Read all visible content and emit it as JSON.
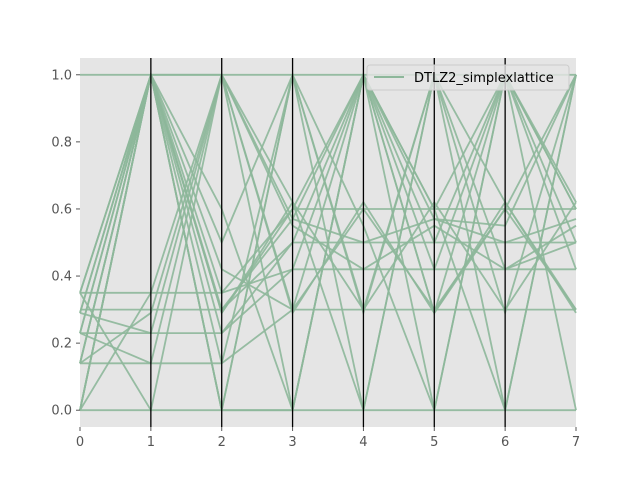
{
  "chart_data": {
    "type": "line",
    "subtype": "parallel-coordinates",
    "title": "",
    "xlabel": "",
    "ylabel": "",
    "xlim": [
      0,
      7
    ],
    "ylim": [
      -0.05,
      1.05
    ],
    "x_ticks": [
      0,
      1,
      2,
      3,
      4,
      5,
      6,
      7
    ],
    "x_tick_labels": [
      "0",
      "1",
      "2",
      "3",
      "4",
      "5",
      "6",
      "7"
    ],
    "y_ticks": [
      0.0,
      0.2,
      0.4,
      0.6,
      0.8,
      1.0
    ],
    "y_tick_labels": [
      "0.0",
      "0.2",
      "0.4",
      "0.6",
      "0.8",
      "1.0"
    ],
    "grid": false,
    "axis_background": "#e5e5e5",
    "vertical_axes_color": "#000000",
    "legend": {
      "position": "top-right",
      "entries": [
        "DTLZ2_simplexlattice"
      ]
    },
    "series": [
      {
        "name": "DTLZ2_simplexlattice",
        "color": "#8db79a",
        "x": [
          0,
          1,
          2,
          3,
          4,
          5,
          6,
          7
        ],
        "lines": [
          [
            1.0,
            1.0,
            1.0,
            1.0,
            1.0,
            1.0,
            1.0,
            1.0
          ],
          [
            0.0,
            1.0,
            1.0,
            0.0,
            1.0,
            0.0,
            1.0,
            0.0
          ],
          [
            0.35,
            0.35,
            0.35,
            0.6,
            0.6,
            0.6,
            0.6,
            0.6
          ],
          [
            0.3,
            0.3,
            0.3,
            0.5,
            0.5,
            0.5,
            0.5,
            0.5
          ],
          [
            0.23,
            0.23,
            0.23,
            0.42,
            0.42,
            0.42,
            0.42,
            0.42
          ],
          [
            0.14,
            0.14,
            0.14,
            0.3,
            0.3,
            0.3,
            0.3,
            0.3
          ],
          [
            0.0,
            0.0,
            0.0,
            0.0,
            0.0,
            0.0,
            0.0,
            0.0
          ],
          [
            0.35,
            1.0,
            0.0,
            1.0,
            0.0,
            1.0,
            0.0,
            1.0
          ],
          [
            0.29,
            1.0,
            0.14,
            1.0,
            0.29,
            1.0,
            0.29,
            1.0
          ],
          [
            0.23,
            1.0,
            0.29,
            0.6,
            1.0,
            0.6,
            1.0,
            0.6
          ],
          [
            0.14,
            1.0,
            0.23,
            0.5,
            1.0,
            0.5,
            1.0,
            0.5
          ],
          [
            0.0,
            1.0,
            0.35,
            0.42,
            1.0,
            0.42,
            1.0,
            0.42
          ],
          [
            0.35,
            0.0,
            1.0,
            0.3,
            0.6,
            0.3,
            0.6,
            0.3
          ],
          [
            0.29,
            0.23,
            1.0,
            0.62,
            0.3,
            0.62,
            0.3,
            0.62
          ],
          [
            0.23,
            0.14,
            1.0,
            0.55,
            0.42,
            0.55,
            0.42,
            0.55
          ],
          [
            0.14,
            0.29,
            1.0,
            0.57,
            0.5,
            0.57,
            0.5,
            0.57
          ],
          [
            0.0,
            0.35,
            1.0,
            0.29,
            0.62,
            0.29,
            0.62,
            0.29
          ],
          [
            0.29,
            1.0,
            0.6,
            0.0,
            1.0,
            0.6,
            0.0,
            1.0
          ],
          [
            0.23,
            1.0,
            0.5,
            1.0,
            0.3,
            1.0,
            0.62,
            0.3
          ],
          [
            0.14,
            1.0,
            0.42,
            0.3,
            1.0,
            0.29,
            1.0,
            0.6
          ],
          [
            0.35,
            1.0,
            0.3,
            0.57,
            1.0,
            0.57,
            0.55,
            1.0
          ],
          [
            0.0,
            1.0,
            0.29,
            0.62,
            0.0,
            1.0,
            0.42,
            0.5
          ],
          [
            0.0,
            1.0,
            0.0,
            1.0,
            0.55,
            0.0,
            1.0,
            0.62
          ],
          [
            0.14,
            1.0,
            0.0,
            0.0,
            1.0,
            0.29,
            0.6,
            1.0
          ]
        ]
      }
    ]
  }
}
